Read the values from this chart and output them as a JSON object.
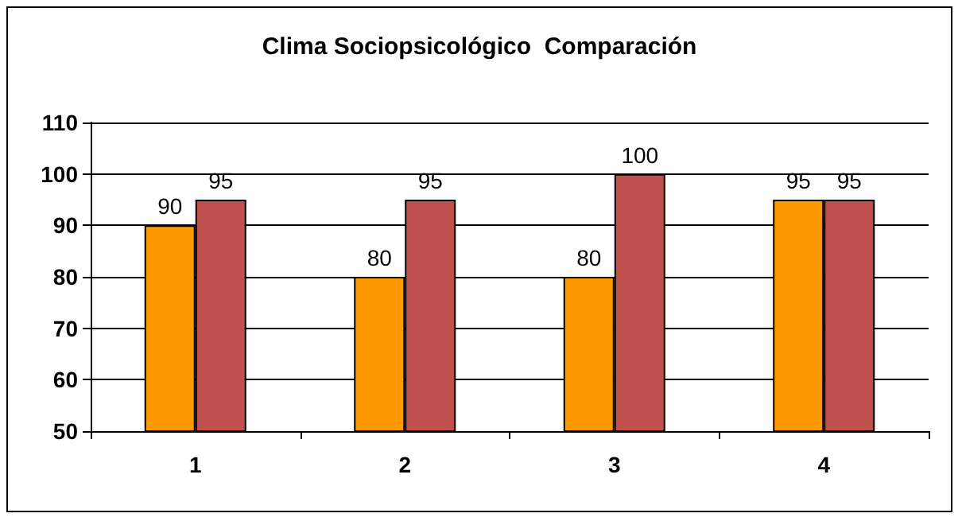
{
  "chart_data": {
    "type": "bar",
    "title": "Clima Sociopsicológico  Comparación",
    "categories": [
      "1",
      "2",
      "3",
      "4"
    ],
    "series": [
      {
        "color": "#ff9900",
        "values": [
          90,
          80,
          80,
          95
        ]
      },
      {
        "color": "#c0504d",
        "values": [
          95,
          95,
          100,
          95
        ]
      }
    ],
    "ylim": [
      50,
      110
    ],
    "yticks": [
      50,
      60,
      70,
      80,
      90,
      100,
      110
    ],
    "grid": "y",
    "data_labels": true
  }
}
